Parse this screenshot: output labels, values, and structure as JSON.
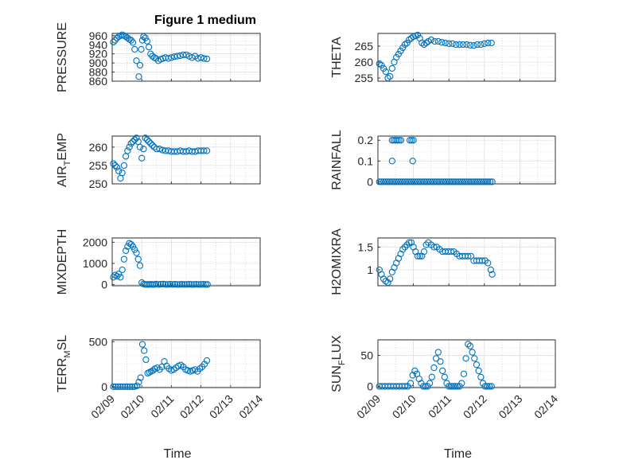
{
  "figure_title": "Figure 1 medium",
  "chart_data": [
    {
      "type": "scatter",
      "panel": "left-row-1",
      "title": "Figure 1 medium",
      "ylabel": "PRESSURE",
      "xlabel": "",
      "xlim": [
        0,
        5
      ],
      "ylim": [
        860,
        965
      ],
      "yticks": [
        860,
        880,
        900,
        920,
        940,
        960
      ],
      "ytick_labels": [
        "860",
        "880",
        "900",
        "920",
        "940",
        "960"
      ],
      "x": [
        0.04,
        0.1,
        0.16,
        0.22,
        0.28,
        0.34,
        0.4,
        0.46,
        0.52,
        0.58,
        0.64,
        0.7,
        0.76,
        0.82,
        0.9,
        0.94,
        0.98,
        1.02,
        1.06,
        1.12,
        1.18,
        1.24,
        1.3,
        1.36,
        1.42,
        1.48,
        1.56,
        1.64,
        1.72,
        1.8,
        1.9,
        2.0,
        2.1,
        2.2,
        2.3,
        2.4,
        2.5,
        2.6,
        2.7,
        2.8,
        2.9,
        3.0,
        3.1,
        3.2
      ],
      "y": [
        946,
        950,
        955,
        958,
        960,
        962,
        960,
        958,
        955,
        952,
        950,
        945,
        930,
        905,
        870,
        895,
        930,
        950,
        958,
        955,
        948,
        935,
        920,
        915,
        912,
        910,
        905,
        908,
        910,
        912,
        910,
        912,
        914,
        915,
        916,
        918,
        918,
        915,
        912,
        915,
        910,
        912,
        910,
        909
      ]
    },
    {
      "type": "scatter",
      "panel": "right-row-1",
      "ylabel": "THETA",
      "xlabel": "",
      "xlim": [
        0,
        5
      ],
      "ylim": [
        254,
        269
      ],
      "yticks": [
        255,
        260,
        265
      ],
      "ytick_labels": [
        "255",
        "260",
        "265"
      ],
      "x": [
        0.04,
        0.1,
        0.16,
        0.22,
        0.28,
        0.34,
        0.4,
        0.46,
        0.52,
        0.58,
        0.64,
        0.7,
        0.76,
        0.82,
        0.88,
        0.94,
        1.0,
        1.06,
        1.12,
        1.18,
        1.24,
        1.3,
        1.36,
        1.42,
        1.5,
        1.6,
        1.7,
        1.8,
        1.9,
        2.0,
        2.1,
        2.2,
        2.3,
        2.4,
        2.5,
        2.6,
        2.7,
        2.8,
        2.9,
        3.0,
        3.1,
        3.2
      ],
      "y": [
        259.5,
        259,
        258,
        257,
        255,
        255.5,
        258,
        260,
        261.5,
        262.5,
        263.5,
        264.5,
        265.5,
        266,
        267,
        267.5,
        268,
        268.2,
        268.5,
        267.5,
        266,
        265.5,
        266,
        266.5,
        267,
        266.5,
        266.5,
        266.2,
        266,
        265.8,
        265.8,
        265.5,
        265.5,
        265.5,
        265.5,
        265.3,
        265.2,
        265.5,
        265.5,
        265.8,
        266,
        266
      ]
    },
    {
      "type": "scatter",
      "panel": "left-row-2",
      "ylabel": "AIR_TEMP",
      "ylabel_main": "AIR",
      "ylabel_sub": "T",
      "ylabel_tail": "EMP",
      "xlabel": "",
      "xlim": [
        0,
        5
      ],
      "ylim": [
        250,
        263
      ],
      "yticks": [
        250,
        255,
        260
      ],
      "ytick_labels": [
        "250",
        "255",
        "260"
      ],
      "x": [
        0.04,
        0.1,
        0.16,
        0.22,
        0.28,
        0.34,
        0.4,
        0.46,
        0.52,
        0.58,
        0.64,
        0.7,
        0.76,
        0.82,
        0.88,
        0.94,
        1.0,
        1.06,
        1.12,
        1.18,
        1.24,
        1.3,
        1.36,
        1.42,
        1.5,
        1.6,
        1.7,
        1.8,
        1.9,
        2.0,
        2.1,
        2.2,
        2.3,
        2.4,
        2.5,
        2.6,
        2.7,
        2.8,
        2.9,
        3.0,
        3.1,
        3.2
      ],
      "y": [
        255.5,
        255,
        254.5,
        253.5,
        251.5,
        253,
        255,
        257.5,
        259,
        260,
        261,
        261.5,
        262,
        262.5,
        261.5,
        260,
        257,
        259.5,
        262.5,
        262,
        261.5,
        261,
        260.5,
        260,
        259.5,
        259.5,
        259.2,
        259,
        259,
        258.8,
        258.8,
        258.8,
        259,
        258.8,
        258.8,
        259,
        258.8,
        258.8,
        259,
        259,
        259,
        259
      ]
    },
    {
      "type": "scatter",
      "panel": "right-row-2",
      "ylabel": "RAINFALL",
      "xlabel": "",
      "xlim": [
        0,
        5
      ],
      "ylim": [
        -0.01,
        0.22
      ],
      "yticks": [
        0,
        0.1,
        0.2
      ],
      "ytick_labels": [
        "0",
        "0.1",
        "0.2"
      ],
      "x": [
        0.04,
        0.1,
        0.16,
        0.22,
        0.28,
        0.34,
        0.4,
        0.46,
        0.52,
        0.58,
        0.64,
        0.7,
        0.76,
        0.82,
        0.88,
        0.94,
        1.0,
        1.06,
        1.12,
        1.18,
        1.24,
        1.3,
        1.36,
        1.42,
        1.48,
        1.54,
        1.6,
        1.66,
        1.72,
        1.78,
        1.84,
        1.9,
        1.96,
        2.02,
        2.08,
        2.14,
        2.2,
        2.26,
        2.32,
        2.38,
        2.44,
        2.5,
        2.56,
        2.62,
        2.68,
        2.74,
        2.8,
        2.86,
        2.92,
        2.98,
        3.04,
        3.1,
        3.16,
        3.22,
        0.4,
        0.45,
        0.5,
        0.55,
        0.6,
        0.65,
        0.9,
        0.95,
        1.0,
        0.4,
        0.98
      ],
      "y": [
        0,
        0,
        0,
        0,
        0,
        0,
        0,
        0,
        0,
        0,
        0,
        0,
        0,
        0,
        0,
        0,
        0,
        0,
        0,
        0,
        0,
        0,
        0,
        0,
        0,
        0,
        0,
        0,
        0,
        0,
        0,
        0,
        0,
        0,
        0,
        0,
        0,
        0,
        0,
        0,
        0,
        0,
        0,
        0,
        0,
        0,
        0,
        0,
        0,
        0,
        0,
        0,
        0,
        0,
        0.2,
        0.2,
        0.2,
        0.2,
        0.2,
        0.2,
        0.2,
        0.2,
        0.2,
        0.1,
        0.1
      ]
    },
    {
      "type": "scatter",
      "panel": "left-row-3",
      "ylabel": "MIXDEPTH",
      "xlabel": "",
      "xlim": [
        0,
        5
      ],
      "ylim": [
        -50,
        2200
      ],
      "yticks": [
        0,
        1000,
        2000
      ],
      "ytick_labels": [
        "0",
        "1000",
        "2000"
      ],
      "x": [
        0.04,
        0.1,
        0.16,
        0.22,
        0.28,
        0.34,
        0.4,
        0.46,
        0.52,
        0.58,
        0.64,
        0.7,
        0.76,
        0.82,
        0.88,
        0.94,
        1.0,
        1.06,
        1.12,
        1.18,
        1.24,
        1.3,
        1.36,
        1.42,
        1.48,
        1.56,
        1.64,
        1.72,
        1.8,
        1.88,
        1.96,
        2.04,
        2.12,
        2.2,
        2.28,
        2.36,
        2.44,
        2.52,
        2.6,
        2.68,
        2.76,
        2.84,
        2.92,
        3.0,
        3.08,
        3.16,
        3.22
      ],
      "y": [
        350,
        450,
        400,
        500,
        350,
        700,
        1200,
        1600,
        1800,
        1950,
        1900,
        1800,
        1650,
        1500,
        1200,
        900,
        100,
        30,
        10,
        10,
        10,
        20,
        10,
        10,
        30,
        10,
        20,
        30,
        10,
        10,
        20,
        10,
        20,
        10,
        10,
        20,
        10,
        10,
        20,
        10,
        10,
        20,
        10,
        10,
        20,
        10,
        10
      ]
    },
    {
      "type": "scatter",
      "panel": "right-row-3",
      "ylabel": "H2OMIXRA",
      "xlabel": "",
      "xlim": [
        0,
        5
      ],
      "ylim": [
        0.65,
        1.7
      ],
      "yticks": [
        1,
        1.5
      ],
      "ytick_labels": [
        "1",
        "1.5"
      ],
      "x": [
        0.04,
        0.1,
        0.16,
        0.22,
        0.28,
        0.34,
        0.4,
        0.46,
        0.52,
        0.58,
        0.64,
        0.7,
        0.76,
        0.82,
        0.88,
        0.94,
        1.0,
        1.06,
        1.12,
        1.18,
        1.24,
        1.3,
        1.36,
        1.42,
        1.5,
        1.58,
        1.66,
        1.74,
        1.82,
        1.9,
        1.98,
        2.06,
        2.14,
        2.22,
        2.3,
        2.38,
        2.46,
        2.54,
        2.62,
        2.7,
        2.78,
        2.86,
        2.94,
        3.02,
        3.1,
        3.18,
        3.22
      ],
      "y": [
        1.0,
        0.9,
        0.8,
        0.75,
        0.72,
        0.8,
        0.95,
        1.05,
        1.15,
        1.25,
        1.35,
        1.45,
        1.5,
        1.55,
        1.6,
        1.6,
        1.5,
        1.4,
        1.3,
        1.3,
        1.3,
        1.4,
        1.55,
        1.6,
        1.55,
        1.5,
        1.5,
        1.45,
        1.4,
        1.4,
        1.4,
        1.4,
        1.4,
        1.35,
        1.3,
        1.3,
        1.3,
        1.3,
        1.3,
        1.2,
        1.2,
        1.2,
        1.2,
        1.2,
        1.15,
        1.0,
        0.9
      ]
    },
    {
      "type": "scatter",
      "panel": "left-row-4",
      "ylabel": "TERR_MSL",
      "ylabel_main": "TERR",
      "ylabel_sub": "M",
      "ylabel_tail": "SL",
      "xlabel": "Time",
      "xlim": [
        0,
        5
      ],
      "ylim": [
        -10,
        520
      ],
      "yticks": [
        0,
        500
      ],
      "ytick_labels": [
        "0",
        "500"
      ],
      "xticks": [
        0,
        1,
        2,
        3,
        4,
        5
      ],
      "xtick_labels": [
        "02/09",
        "02/10",
        "02/11",
        "02/12",
        "02/13",
        "02/14"
      ],
      "x": [
        0.04,
        0.12,
        0.2,
        0.28,
        0.36,
        0.44,
        0.52,
        0.6,
        0.68,
        0.76,
        0.84,
        0.9,
        0.96,
        1.02,
        1.08,
        1.14,
        1.2,
        1.26,
        1.32,
        1.38,
        1.44,
        1.52,
        1.6,
        1.68,
        1.76,
        1.84,
        1.92,
        2.0,
        2.08,
        2.16,
        2.24,
        2.32,
        2.4,
        2.48,
        2.56,
        2.64,
        2.72,
        2.8,
        2.88,
        2.96,
        3.04,
        3.12,
        3.2
      ],
      "y": [
        0,
        0,
        0,
        0,
        0,
        0,
        0,
        0,
        0,
        0,
        10,
        50,
        100,
        470,
        400,
        300,
        150,
        160,
        170,
        180,
        200,
        210,
        190,
        220,
        280,
        230,
        200,
        180,
        190,
        210,
        230,
        240,
        220,
        190,
        180,
        170,
        180,
        190,
        170,
        200,
        220,
        250,
        290
      ]
    },
    {
      "type": "scatter",
      "panel": "right-row-4",
      "ylabel": "SUN_FLUX",
      "ylabel_main": "SUN",
      "ylabel_sub": "F",
      "ylabel_tail": "LUX",
      "xlabel": "Time",
      "xlim": [
        0,
        5
      ],
      "ylim": [
        -2,
        75
      ],
      "yticks": [
        0,
        50
      ],
      "ytick_labels": [
        "0",
        "50"
      ],
      "xticks": [
        0,
        1,
        2,
        3,
        4,
        5
      ],
      "xtick_labels": [
        "02/09",
        "02/10",
        "02/11",
        "02/12",
        "02/13",
        "02/14"
      ],
      "x": [
        0.04,
        0.12,
        0.2,
        0.28,
        0.36,
        0.44,
        0.52,
        0.6,
        0.68,
        0.76,
        0.84,
        0.92,
        0.98,
        1.04,
        1.1,
        1.16,
        1.22,
        1.28,
        1.34,
        1.4,
        1.46,
        1.52,
        1.58,
        1.64,
        1.7,
        1.76,
        1.82,
        1.88,
        1.94,
        2.0,
        2.06,
        2.12,
        2.18,
        2.24,
        2.3,
        2.36,
        2.42,
        2.48,
        2.54,
        2.6,
        2.66,
        2.72,
        2.78,
        2.84,
        2.9,
        2.96,
        3.02,
        3.08,
        3.14,
        3.2
      ],
      "y": [
        0,
        0,
        0,
        0,
        0,
        0,
        0,
        0,
        0,
        0,
        0,
        5,
        18,
        25,
        20,
        12,
        5,
        0,
        0,
        0,
        5,
        15,
        30,
        45,
        55,
        40,
        25,
        15,
        5,
        0,
        0,
        0,
        0,
        0,
        0,
        5,
        20,
        45,
        68,
        65,
        55,
        45,
        35,
        25,
        15,
        5,
        0,
        0,
        0,
        0
      ]
    }
  ]
}
